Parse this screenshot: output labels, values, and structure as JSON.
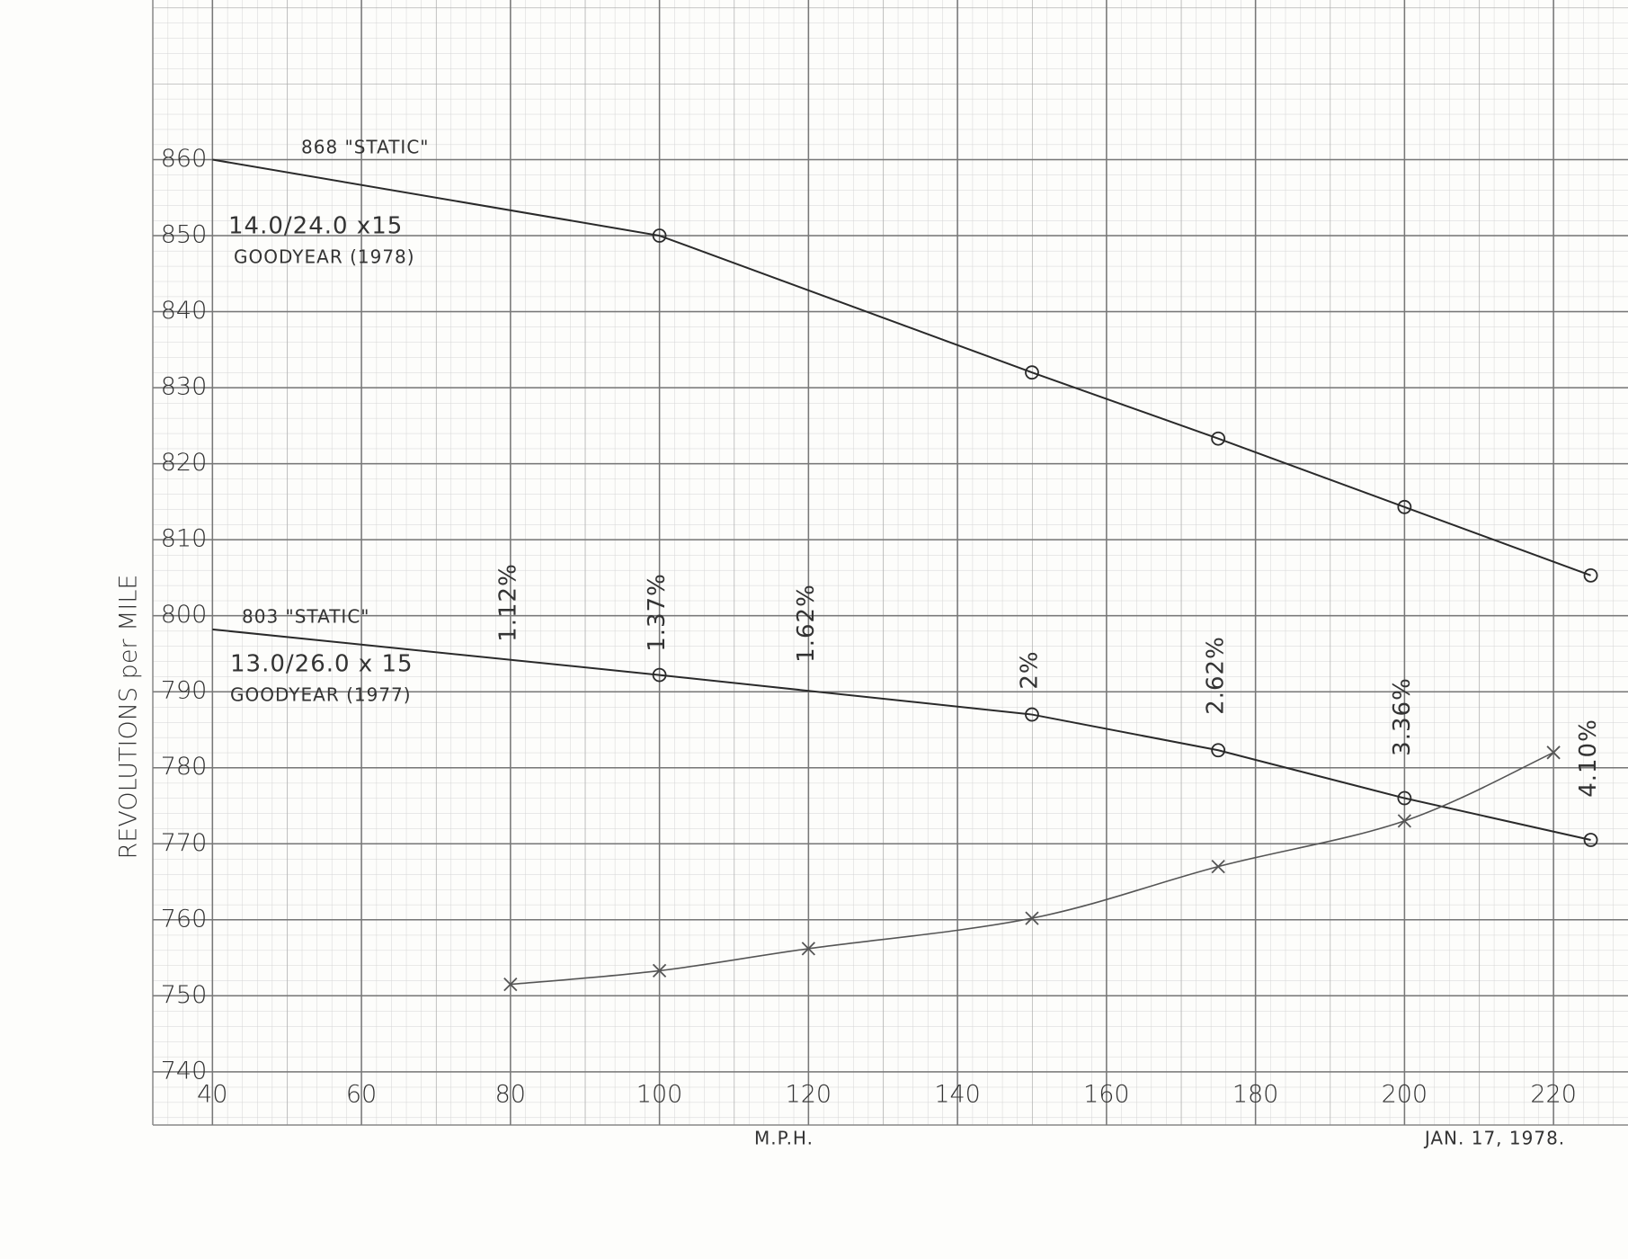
{
  "chart_data": {
    "type": "line",
    "y_title": "REVOLUTIONS per MILE",
    "x_title": "M.P.H.",
    "date": "JAN. 17, 1978.",
    "xlim": [
      32,
      230
    ],
    "ylim": [
      733,
      881
    ],
    "xticks": [
      40,
      60,
      80,
      100,
      120,
      140,
      160,
      180,
      200,
      220
    ],
    "yticks": [
      740,
      750,
      760,
      770,
      780,
      790,
      800,
      810,
      820,
      830,
      840,
      850,
      860
    ],
    "grid": true,
    "series": [
      {
        "name": "14.0/24.0 x15",
        "subtitle": "GOODYEAR (1978)",
        "static_label": "868 \"STATIC\"",
        "marker": "circle",
        "color": "#2a2a2a",
        "x": [
          40,
          100,
          150,
          175,
          200,
          225
        ],
        "values": [
          860,
          850,
          832,
          823.3,
          814.3,
          805.3
        ]
      },
      {
        "name": "13.0/26.0 x 15",
        "subtitle": "GOODYEAR (1977)",
        "static_label": "803 \"STATIC\"",
        "marker": "circle",
        "color": "#2a2a2a",
        "x": [
          40,
          100,
          150,
          175,
          200,
          225
        ],
        "values": [
          798.2,
          792.2,
          787,
          782.3,
          776,
          770.5
        ]
      },
      {
        "marker": "cross",
        "color": "#555555",
        "x": [
          80,
          100,
          120,
          150,
          175,
          200,
          220
        ],
        "values": [
          751.5,
          753.3,
          756.2,
          760.2,
          767,
          773,
          782
        ]
      }
    ],
    "percent_labels": {
      "x": [
        80,
        100,
        120,
        150,
        175,
        200,
        225
      ],
      "labels": [
        "1.12%",
        "1.37%",
        "1.62%",
        "2%",
        "2.62%",
        "3.36%",
        "4.10%"
      ]
    }
  }
}
